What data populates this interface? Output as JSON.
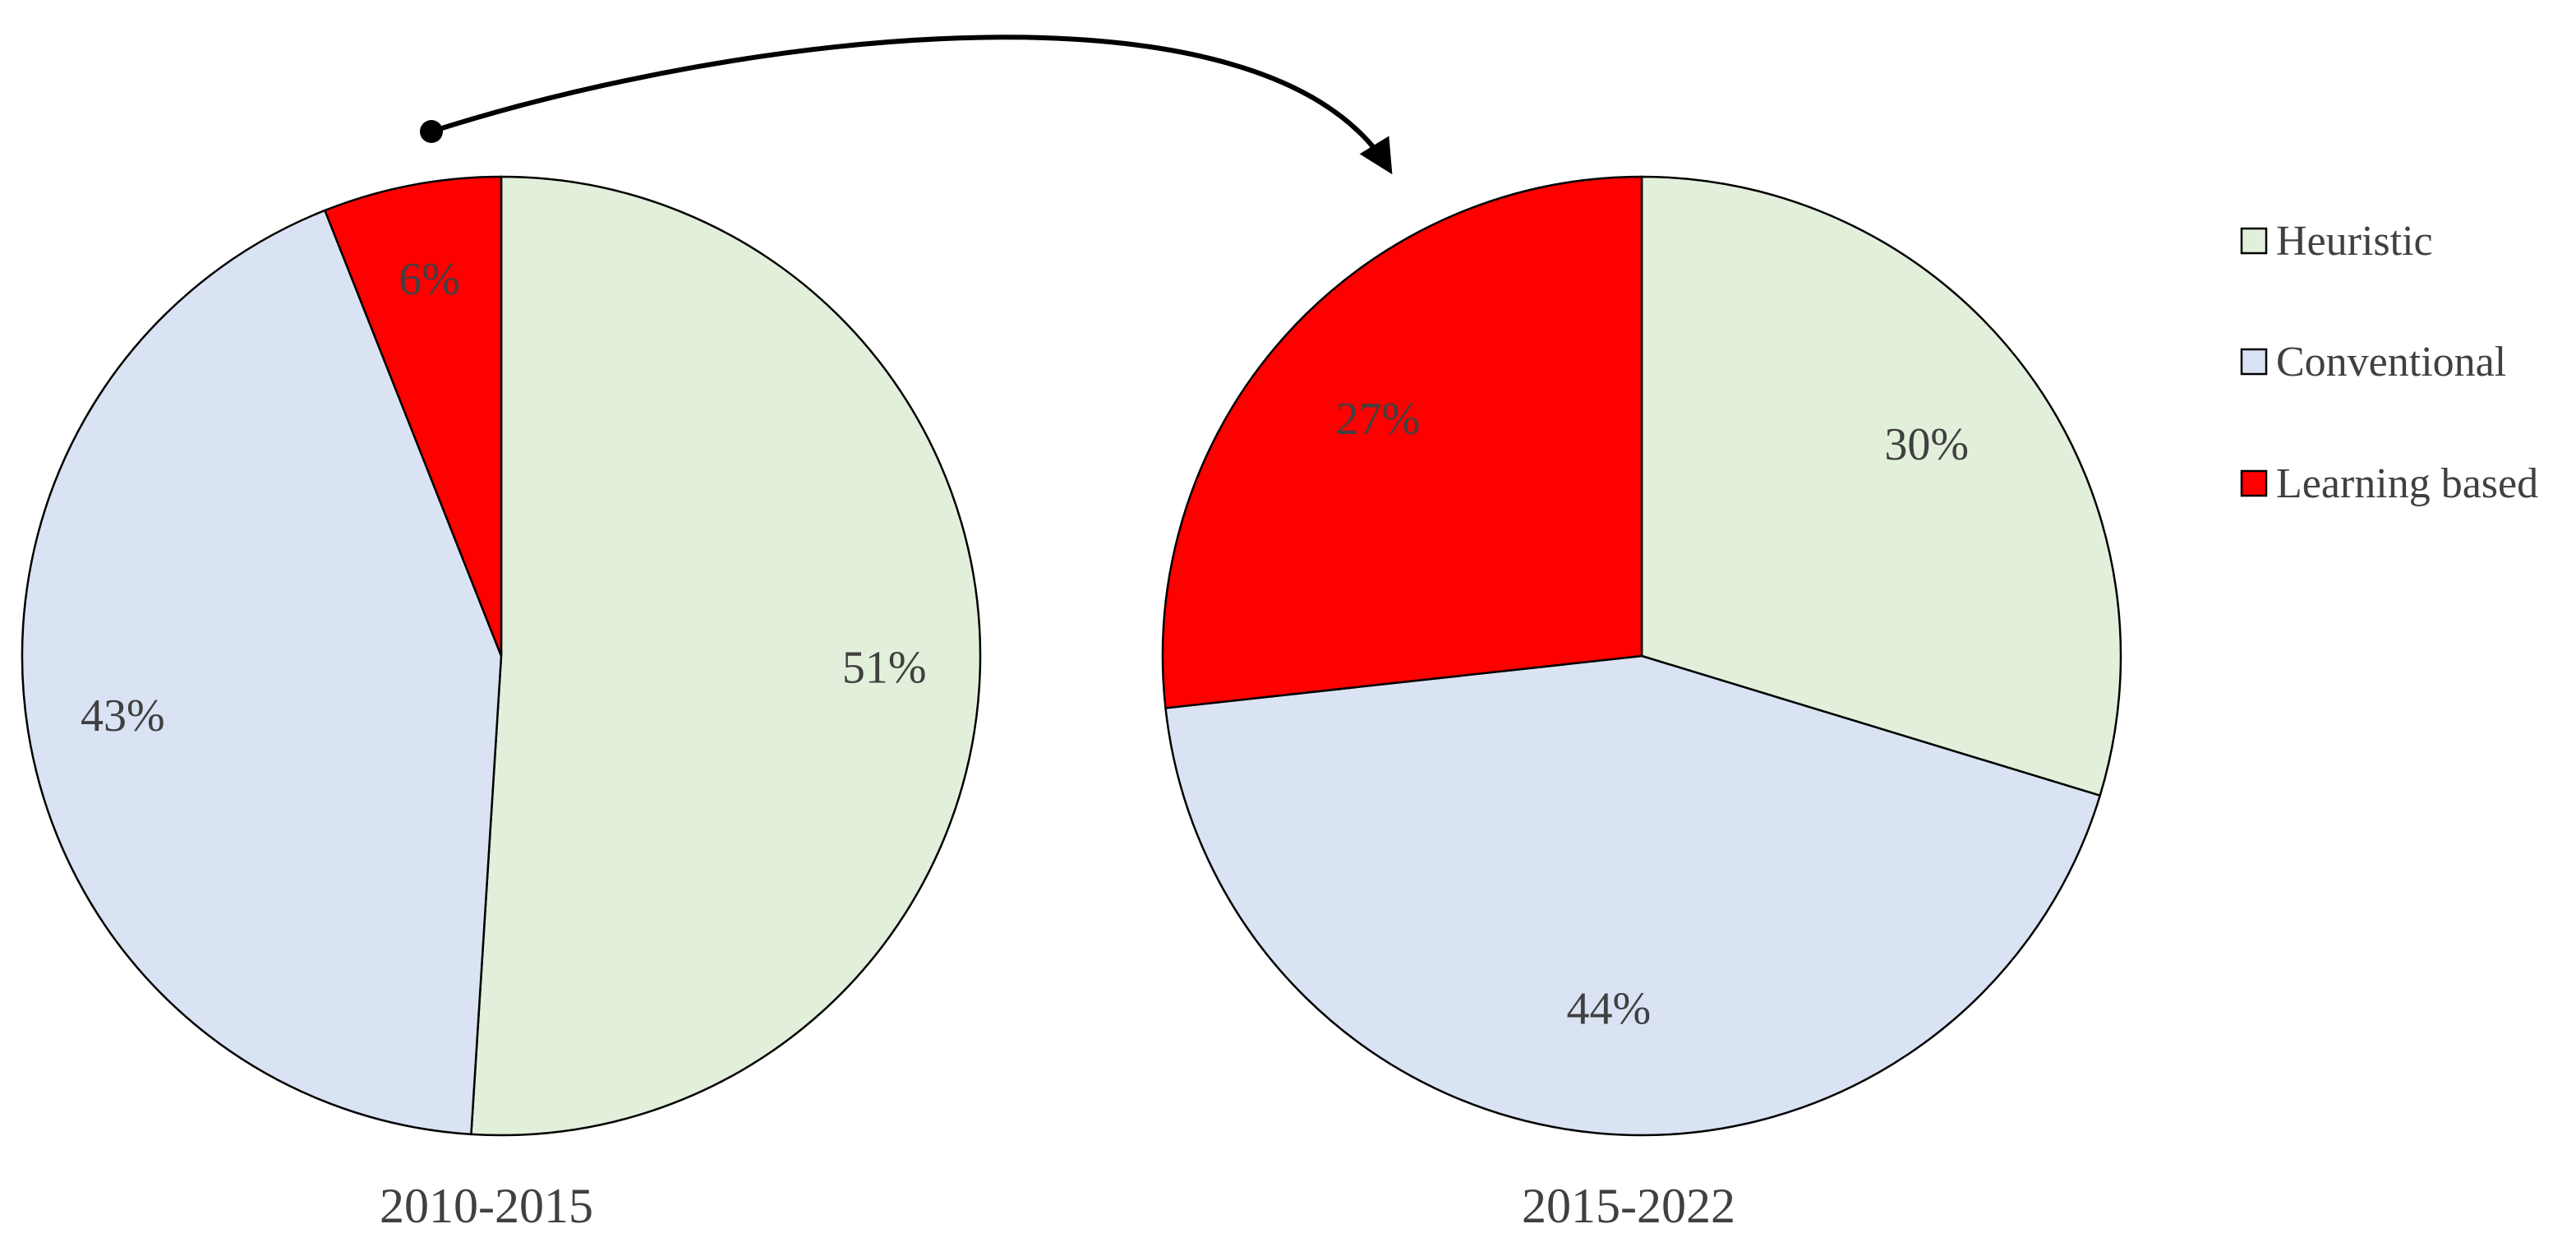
{
  "chart_data": {
    "type": "pie",
    "title": "",
    "legend": {
      "placement": "right",
      "entries": [
        {
          "name": "Heuristic",
          "color": "#e2efda"
        },
        {
          "name": "Conventional",
          "color": "#dae3f3"
        },
        {
          "name": "Learning based",
          "color": "#ff0000"
        }
      ]
    },
    "pies": [
      {
        "caption": "2010-2015",
        "slices": [
          {
            "name": "Heuristic",
            "value": 51,
            "label": "51%"
          },
          {
            "name": "Conventional",
            "value": 43,
            "label": "43%"
          },
          {
            "name": "Learning based",
            "value": 6,
            "label": "6%"
          }
        ]
      },
      {
        "caption": "2015-2022",
        "slices": [
          {
            "name": "Heuristic",
            "value": 30,
            "label": "30%"
          },
          {
            "name": "Conventional",
            "value": 44,
            "label": "44%"
          },
          {
            "name": "Learning based",
            "value": 27,
            "label": "27%"
          }
        ]
      }
    ],
    "annotations": [
      {
        "type": "arrow",
        "from": "2010-2015",
        "to": "2015-2022"
      }
    ]
  }
}
